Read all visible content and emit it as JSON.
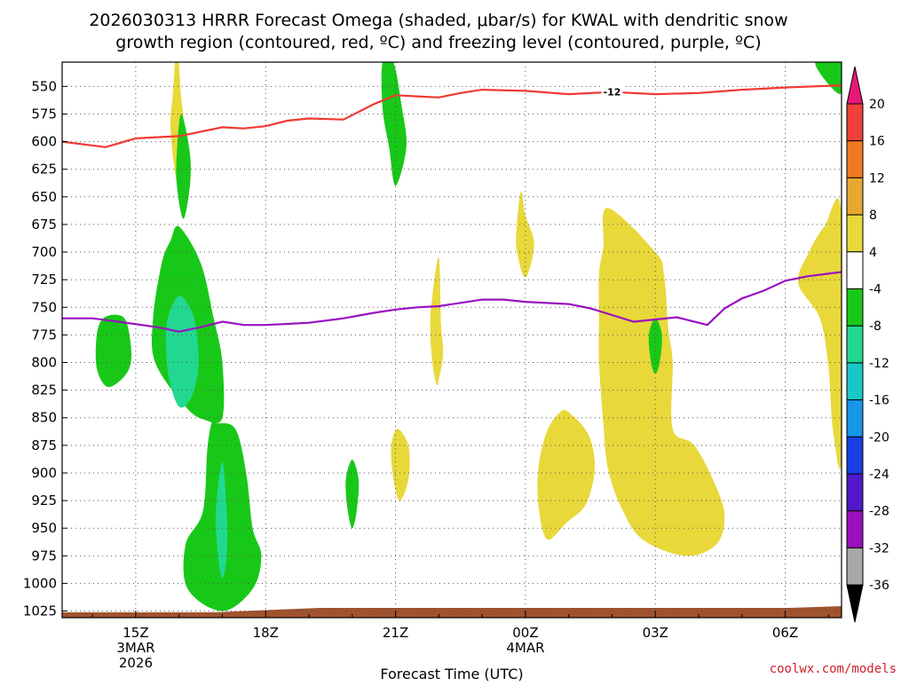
{
  "chart_data": {
    "type": "heatmap",
    "title_line1": "2026030313 HRRR Forecast Omega (shaded, μbar/s) for KWAL with dendritic snow",
    "title_line2": "growth region (contoured, red, ºC) and freezing level (contoured, purple, ºC)",
    "xlabel": "Forecast Time (UTC)",
    "credit": "coolwx.com/models",
    "xlim": [
      13.3,
      31.3
    ],
    "ylim": [
      1031,
      528
    ],
    "y_ticks": [
      550,
      575,
      600,
      625,
      650,
      675,
      700,
      725,
      750,
      775,
      800,
      825,
      850,
      875,
      900,
      925,
      950,
      975,
      1000,
      1025
    ],
    "x_ticks": [
      {
        "x": 15,
        "label": "15Z"
      },
      {
        "x": 18,
        "label": "18Z"
      },
      {
        "x": 21,
        "label": "21Z"
      },
      {
        "x": 24,
        "label": "00Z"
      },
      {
        "x": 27,
        "label": "03Z"
      },
      {
        "x": 30,
        "label": "06Z"
      }
    ],
    "date_labels": [
      {
        "x": 15,
        "lines": [
          "3MAR",
          "2026"
        ]
      },
      {
        "x": 24,
        "lines": [
          "4MAR"
        ]
      }
    ],
    "colorbar": {
      "labels": [
        20,
        16,
        12,
        8,
        4,
        -4,
        -8,
        -12,
        -16,
        -20,
        -24,
        -28,
        -32,
        -36
      ],
      "colors": [
        "#e8177a",
        "#f0403a",
        "#f07a20",
        "#e8a830",
        "#e8d83a",
        "#ffffff",
        "#18c818",
        "#22d890",
        "#18c8c8",
        "#1896e8",
        "#1840e0",
        "#5018c8",
        "#9a10c0",
        "#a8a8a8",
        "#000000"
      ],
      "colors_note": "top triangle to bottom triangle, 15 entries"
    },
    "dgz_contour": {
      "label": "-12",
      "color": "#f03a32",
      "points": [
        [
          13.3,
          600
        ],
        [
          14.3,
          605
        ],
        [
          15.0,
          597
        ],
        [
          16.0,
          595
        ],
        [
          17.0,
          587
        ],
        [
          17.5,
          588
        ],
        [
          18.0,
          586
        ],
        [
          18.5,
          581
        ],
        [
          19.0,
          579
        ],
        [
          19.8,
          580
        ],
        [
          20.5,
          566
        ],
        [
          21.0,
          558
        ],
        [
          21.5,
          559
        ],
        [
          22.0,
          560
        ],
        [
          22.5,
          556
        ],
        [
          23.0,
          553
        ],
        [
          24.0,
          554
        ],
        [
          25.0,
          557
        ],
        [
          26.0,
          555
        ],
        [
          27.0,
          557
        ],
        [
          28.0,
          556
        ],
        [
          29.0,
          553
        ],
        [
          30.0,
          551
        ],
        [
          31.3,
          549
        ]
      ]
    },
    "freezing_contour": {
      "color": "#9a10c0",
      "points": [
        [
          13.3,
          760
        ],
        [
          14.0,
          760
        ],
        [
          14.6,
          763
        ],
        [
          15.5,
          768
        ],
        [
          16.0,
          772
        ],
        [
          16.5,
          768
        ],
        [
          17.0,
          763
        ],
        [
          17.5,
          766
        ],
        [
          18.0,
          766
        ],
        [
          18.5,
          765
        ],
        [
          19.0,
          764
        ],
        [
          19.8,
          760
        ],
        [
          20.5,
          755
        ],
        [
          21.0,
          752
        ],
        [
          21.5,
          750
        ],
        [
          22.0,
          749
        ],
        [
          22.5,
          746
        ],
        [
          23.0,
          743
        ],
        [
          23.5,
          743
        ],
        [
          24.0,
          745
        ],
        [
          25.0,
          747
        ],
        [
          25.5,
          751
        ],
        [
          26.0,
          757
        ],
        [
          26.5,
          763
        ],
        [
          27.0,
          761
        ],
        [
          27.5,
          759
        ],
        [
          28.0,
          764
        ],
        [
          28.2,
          766
        ],
        [
          28.6,
          751
        ],
        [
          29.0,
          742
        ],
        [
          29.5,
          735
        ],
        [
          30.0,
          726
        ],
        [
          30.5,
          722
        ],
        [
          31.3,
          718
        ]
      ]
    },
    "omega_regions": [
      {
        "category": "4to8",
        "points": [
          [
            15.95,
            515
          ],
          [
            16.05,
            560
          ],
          [
            16.1,
            582
          ],
          [
            16.0,
            610
          ],
          [
            15.95,
            635
          ],
          [
            15.85,
            610
          ],
          [
            15.8,
            582
          ],
          [
            15.85,
            560
          ]
        ]
      },
      {
        "category": "4to8",
        "points": [
          [
            22.0,
            705
          ],
          [
            22.05,
            765
          ],
          [
            22.1,
            792
          ],
          [
            22.0,
            815
          ],
          [
            21.95,
            820
          ],
          [
            21.85,
            800
          ],
          [
            21.8,
            767
          ],
          [
            21.85,
            740
          ]
        ]
      },
      {
        "category": "4to8",
        "points": [
          [
            23.9,
            645
          ],
          [
            24.0,
            667
          ],
          [
            24.2,
            693
          ],
          [
            24.0,
            723
          ],
          [
            23.8,
            699
          ],
          [
            23.8,
            675
          ]
        ]
      },
      {
        "category": "4to8",
        "points": [
          [
            21.05,
            860
          ],
          [
            21.3,
            876
          ],
          [
            21.3,
            905
          ],
          [
            21.1,
            925
          ],
          [
            20.95,
            905
          ],
          [
            20.9,
            876
          ]
        ]
      },
      {
        "category": "4to8",
        "points": [
          [
            25.0,
            845
          ],
          [
            25.45,
            865
          ],
          [
            25.6,
            895
          ],
          [
            25.4,
            928
          ],
          [
            24.95,
            945
          ],
          [
            24.5,
            960
          ],
          [
            24.3,
            930
          ],
          [
            24.3,
            895
          ],
          [
            24.5,
            862
          ],
          [
            24.8,
            845
          ]
        ]
      },
      {
        "category": "4to8",
        "points": [
          [
            27.0,
            700
          ],
          [
            27.2,
            720
          ],
          [
            27.3,
            770
          ],
          [
            27.4,
            800
          ],
          [
            27.4,
            860
          ],
          [
            27.9,
            875
          ],
          [
            28.4,
            912
          ],
          [
            28.6,
            940
          ],
          [
            28.4,
            965
          ],
          [
            27.7,
            975
          ],
          [
            26.7,
            960
          ],
          [
            26.2,
            930
          ],
          [
            25.9,
            895
          ],
          [
            25.8,
            855
          ],
          [
            25.7,
            800
          ],
          [
            25.7,
            760
          ],
          [
            25.7,
            720
          ],
          [
            25.8,
            695
          ],
          [
            25.9,
            660
          ]
        ]
      },
      {
        "category": "4to8",
        "points": [
          [
            31.3,
            665
          ],
          [
            31.3,
            885
          ],
          [
            31.1,
            860
          ],
          [
            31.0,
            805
          ],
          [
            30.8,
            760
          ],
          [
            30.3,
            728
          ],
          [
            30.55,
            700
          ],
          [
            30.9,
            677
          ]
        ]
      },
      {
        "category": "-8to-4",
        "points": [
          [
            16.05,
            575
          ],
          [
            16.25,
            610
          ],
          [
            16.25,
            640
          ],
          [
            16.1,
            670
          ],
          [
            15.95,
            640
          ],
          [
            15.95,
            610
          ]
        ]
      },
      {
        "category": "-8to-4",
        "points": [
          [
            14.6,
            757
          ],
          [
            14.8,
            765
          ],
          [
            14.9,
            795
          ],
          [
            14.75,
            812
          ],
          [
            14.35,
            822
          ],
          [
            14.1,
            805
          ],
          [
            14.1,
            775
          ],
          [
            14.25,
            760
          ]
        ]
      },
      {
        "category": "-8to-4",
        "points": [
          [
            16.0,
            677
          ],
          [
            16.5,
            710
          ],
          [
            16.8,
            760
          ],
          [
            17.0,
            800
          ],
          [
            17.0,
            850
          ],
          [
            16.6,
            852
          ],
          [
            16.15,
            840
          ],
          [
            15.45,
            800
          ],
          [
            15.4,
            760
          ],
          [
            15.6,
            710
          ],
          [
            15.8,
            690
          ]
        ]
      },
      {
        "category": "-12to-8",
        "points": [
          [
            16.05,
            740
          ],
          [
            16.35,
            760
          ],
          [
            16.45,
            800
          ],
          [
            16.3,
            830
          ],
          [
            16.0,
            840
          ],
          [
            15.75,
            810
          ],
          [
            15.7,
            770
          ],
          [
            15.85,
            748
          ]
        ]
      },
      {
        "category": "-8to-4",
        "points": [
          [
            16.85,
            855
          ],
          [
            17.3,
            860
          ],
          [
            17.55,
            900
          ],
          [
            17.7,
            950
          ],
          [
            17.9,
            975
          ],
          [
            17.7,
            1005
          ],
          [
            17.0,
            1025
          ],
          [
            16.2,
            1005
          ],
          [
            16.15,
            965
          ],
          [
            16.55,
            935
          ],
          [
            16.65,
            880
          ],
          [
            16.75,
            855
          ]
        ]
      },
      {
        "category": "-12to-8",
        "points": [
          [
            17.0,
            890
          ],
          [
            17.1,
            935
          ],
          [
            17.1,
            975
          ],
          [
            17.0,
            995
          ],
          [
            16.9,
            975
          ],
          [
            16.85,
            935
          ]
        ]
      },
      {
        "category": "-8to-4",
        "points": [
          [
            20.95,
            528
          ],
          [
            21.15,
            570
          ],
          [
            21.25,
            605
          ],
          [
            21.0,
            640
          ],
          [
            20.85,
            605
          ],
          [
            20.7,
            570
          ],
          [
            20.7,
            528
          ]
        ]
      },
      {
        "category": "-8to-4",
        "points": [
          [
            20.0,
            888
          ],
          [
            20.15,
            907
          ],
          [
            20.1,
            935
          ],
          [
            20.0,
            950
          ],
          [
            19.9,
            935
          ],
          [
            19.85,
            907
          ]
        ]
      },
      {
        "category": "-8to-4",
        "points": [
          [
            27.0,
            760
          ],
          [
            27.15,
            775
          ],
          [
            27.1,
            800
          ],
          [
            27.0,
            810
          ],
          [
            26.9,
            800
          ],
          [
            26.85,
            775
          ]
        ]
      },
      {
        "category": "-8to-4",
        "points": [
          [
            31.3,
            528
          ],
          [
            31.3,
            556
          ],
          [
            31.0,
            548
          ],
          [
            30.7,
            528
          ]
        ]
      }
    ]
  }
}
